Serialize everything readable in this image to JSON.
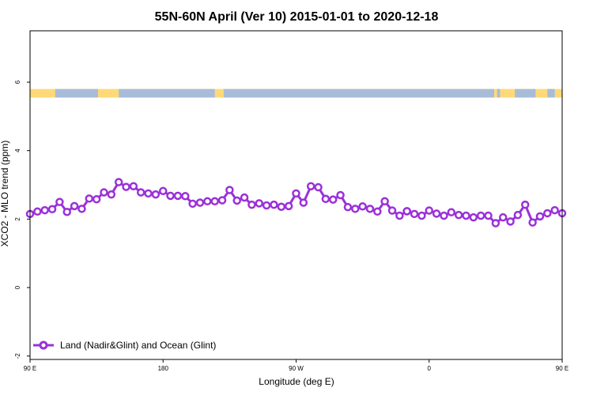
{
  "chart_data": {
    "type": "line",
    "title": "55N-60N April (Ver 10)   2015-01-01 to 2020-12-18",
    "xlabel": "Longitude (deg E)",
    "ylabel": "XCO2 - MLO trend (ppm)",
    "xlim": [
      90,
      450
    ],
    "ylim": [
      -2.1,
      7.5
    ],
    "x_ticks": [
      {
        "value": 90,
        "label": "90 E"
      },
      {
        "value": 180,
        "label": "180"
      },
      {
        "value": 270,
        "label": "90 W"
      },
      {
        "value": 360,
        "label": "0"
      },
      {
        "value": 450,
        "label": "90 E"
      },
      {
        "value": 540,
        "label": "180"
      }
    ],
    "y_ticks": [
      {
        "value": -2,
        "label": "-2"
      },
      {
        "value": 0,
        "label": "0"
      },
      {
        "value": 2,
        "label": "2"
      },
      {
        "value": 4,
        "label": "4"
      },
      {
        "value": 6,
        "label": "6"
      }
    ],
    "grid": false,
    "legend_position": "bottom-left",
    "colors": {
      "series": "#9b30d9",
      "land": "#ffd977",
      "ocean": "#a8bcd8"
    },
    "land_ocean_band": {
      "y_range": [
        5.55,
        5.8
      ],
      "ocean_segments": [
        [
          107,
          136
        ],
        [
          150,
          215
        ],
        [
          221,
          404
        ],
        [
          406,
          408
        ],
        [
          418,
          432
        ],
        [
          440,
          445
        ]
      ]
    },
    "series": [
      {
        "name": "Land (Nadir&Glint) and Ocean (Glint)",
        "segments": [
          {
            "x": [
              90,
              95,
              100,
              105,
              110,
              115,
              120,
              125,
              130,
              135,
              140,
              145,
              150,
              155,
              160,
              165,
              170,
              175,
              180,
              185,
              190,
              195,
              200,
              205,
              210,
              215,
              220,
              225,
              230,
              235,
              240,
              245,
              250,
              255,
              260,
              265,
              270,
              275,
              280,
              285,
              290,
              295,
              300,
              305,
              310,
              315,
              320,
              325,
              330,
              335,
              340,
              345
            ],
            "y": [
              2.15,
              2.22,
              2.26,
              2.29,
              2.5,
              2.21,
              2.38,
              2.3,
              2.6,
              2.58,
              2.78,
              2.72,
              3.08,
              2.94,
              2.96,
              2.78,
              2.75,
              2.72,
              2.82,
              2.68,
              2.68,
              2.67,
              2.45,
              2.48,
              2.52,
              2.52,
              2.55,
              2.85,
              2.54,
              2.63,
              2.42,
              2.46,
              2.4,
              2.42,
              2.36,
              2.38,
              2.75,
              2.48,
              2.96,
              2.93,
              2.59,
              2.57,
              2.7,
              2.35,
              2.3,
              2.37,
              2.3,
              2.22,
              2.52,
              2.25,
              2.1,
              2.23
            ]
          },
          {
            "x": [
              345,
              350,
              355,
              360,
              365,
              370,
              375,
              380,
              385,
              390,
              395,
              400,
              405,
              410,
              415,
              420,
              425,
              430,
              435,
              440,
              445,
              450
            ],
            "y": [
              2.23,
              2.15,
              2.1,
              2.25,
              2.16,
              2.1,
              2.2,
              2.12,
              2.1,
              2.05,
              2.1,
              2.1,
              1.88,
              2.05,
              1.93,
              2.12,
              2.42,
              1.9,
              2.08,
              2.17,
              2.26,
              2.17
            ]
          }
        ]
      }
    ]
  }
}
